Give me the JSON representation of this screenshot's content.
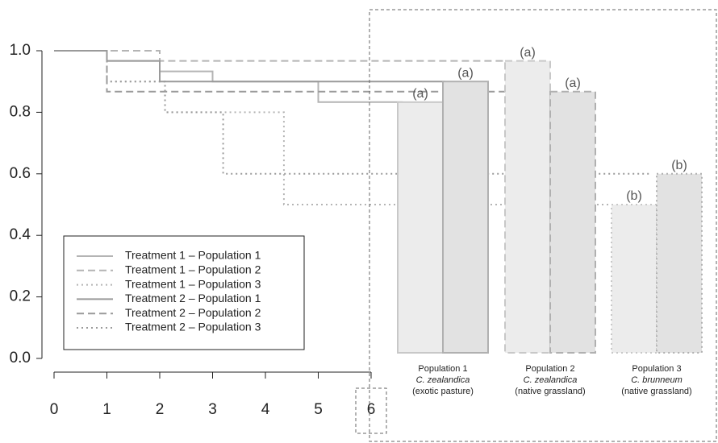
{
  "chart_data": [
    {
      "type": "step",
      "xlim": [
        0,
        6
      ],
      "ylim": [
        0,
        1
      ],
      "xticks": [
        0,
        1,
        2,
        3,
        4,
        5,
        6
      ],
      "yticks": [
        {
          "value": 0,
          "label": "0.0"
        },
        {
          "value": 0.2,
          "label": "0.2"
        },
        {
          "value": 0.4,
          "label": "0.4"
        },
        {
          "value": 0.6,
          "label": "0.6"
        },
        {
          "value": 0.8,
          "label": "0.8"
        },
        {
          "value": 1,
          "label": "1.0"
        }
      ],
      "series": [
        {
          "name": "Treatment 1 – Population 1",
          "color": "#b4b4b4",
          "dash": "solid",
          "x": [
            0,
            1,
            2,
            3,
            5,
            6.6
          ],
          "values": [
            1,
            0.967,
            0.933,
            0.9,
            0.833,
            0.833
          ]
        },
        {
          "name": "Treatment 1 – Population 2",
          "color": "#b4b4b4",
          "dash": "dashed",
          "x": [
            0,
            2,
            8.5
          ],
          "values": [
            1,
            0.967,
            0.967
          ]
        },
        {
          "name": "Treatment 1 – Population 3",
          "color": "#b4b4b4",
          "dash": "dotted",
          "x": [
            0,
            1,
            2.1,
            4.35,
            10.6
          ],
          "values": [
            1,
            0.9,
            0.8,
            0.5,
            0.5
          ]
        },
        {
          "name": "Treatment 2 – Population 1",
          "color": "#9a9a9a",
          "dash": "solid",
          "x": [
            0,
            1,
            2,
            7.4
          ],
          "values": [
            1,
            0.967,
            0.9,
            0.9
          ]
        },
        {
          "name": "Treatment 2 – Population 2",
          "color": "#9a9a9a",
          "dash": "dashed",
          "x": [
            0,
            1,
            9.4
          ],
          "values": [
            1,
            0.867,
            0.867
          ]
        },
        {
          "name": "Treatment 2 – Population 3",
          "color": "#9a9a9a",
          "dash": "dotted",
          "x": [
            0,
            1,
            2.1,
            3.2,
            11.3
          ],
          "values": [
            1,
            0.9,
            0.8,
            0.6,
            0.6
          ]
        }
      ]
    },
    {
      "type": "bar",
      "categories": [
        "Population 1",
        "Population 2",
        "Population 3"
      ],
      "species": [
        "C. zealandica",
        "C. zealandica",
        "C. brunneum"
      ],
      "habitats": [
        "(exotic pasture)",
        "(native grassland)",
        "(native grassland)"
      ],
      "border_styles": [
        "solid",
        "dashed",
        "dotted"
      ],
      "series": [
        {
          "color": "#ececec",
          "border": "#c8c8c8",
          "values": [
            0.833,
            0.967,
            0.5
          ],
          "letters": [
            "(a)",
            "(a)",
            "(b)"
          ]
        },
        {
          "color": "#e2e2e2",
          "border": "#b0b0b0",
          "values": [
            0.9,
            0.867,
            0.6
          ],
          "letters": [
            "(a)",
            "(a)",
            "(b)"
          ]
        }
      ]
    }
  ]
}
